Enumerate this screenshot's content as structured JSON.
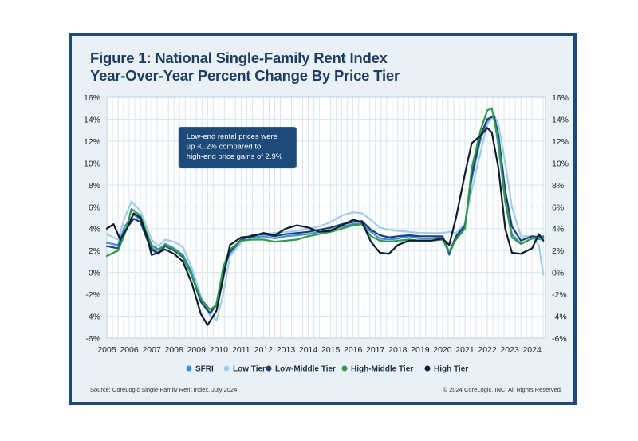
{
  "title_line1": "Figure 1: National Single-Family Rent Index",
  "title_line2": "Year-Over-Year Percent Change By Price Tier",
  "source": "Source: CoreLogic Single-Family Rent Index, July 2024",
  "copyright": "© 2024 CoreLogic, INC. All Rights Reserved.",
  "colors": {
    "frame": "#1f4a78",
    "background": "#e9f1f7",
    "title": "#1d3c5f",
    "annotation_box": "#1d4a78"
  },
  "chart_data": {
    "type": "line",
    "title": "National Single-Family Rent Index Year-Over-Year Percent Change By Price Tier",
    "xlim": [
      2005,
      2024.6
    ],
    "ylim": [
      -6,
      16
    ],
    "x_ticks": [
      2005,
      2006,
      2007,
      2008,
      2009,
      2010,
      2011,
      2012,
      2013,
      2014,
      2015,
      2016,
      2017,
      2018,
      2019,
      2020,
      2021,
      2022,
      2023,
      2024
    ],
    "y_ticks": [
      -6,
      -4,
      -2,
      0,
      2,
      4,
      6,
      8,
      10,
      12,
      14,
      16
    ],
    "y_tick_labels": [
      "-6%",
      "-4%",
      "-2%",
      "0%",
      "2%",
      "4%",
      "6%",
      "8%",
      "10%",
      "12%",
      "14%",
      "16%"
    ],
    "grid": true,
    "legend_position": "bottom",
    "annotation": [
      "Low-end rental prices were",
      "up -0.2% compared to",
      "high-end price gains of 2.9%"
    ],
    "series": [
      {
        "name": "SFRI",
        "color": "#3d8fd6",
        "points": [
          [
            2005.0,
            2.7
          ],
          [
            2005.5,
            2.5
          ],
          [
            2005.8,
            4.2
          ],
          [
            2006.2,
            5.3
          ],
          [
            2006.5,
            4.8
          ],
          [
            2006.8,
            3.2
          ],
          [
            2007.0,
            2.3
          ],
          [
            2007.3,
            1.8
          ],
          [
            2007.6,
            2.6
          ],
          [
            2008.0,
            2.2
          ],
          [
            2008.4,
            1.6
          ],
          [
            2008.8,
            0.0
          ],
          [
            2009.2,
            -2.5
          ],
          [
            2009.6,
            -3.9
          ],
          [
            2009.9,
            -2.8
          ],
          [
            2010.2,
            0.3
          ],
          [
            2010.5,
            1.7
          ],
          [
            2011.0,
            2.9
          ],
          [
            2011.5,
            3.2
          ],
          [
            2012.0,
            3.3
          ],
          [
            2012.5,
            3.1
          ],
          [
            2013.0,
            3.3
          ],
          [
            2013.5,
            3.4
          ],
          [
            2014.0,
            3.5
          ],
          [
            2014.5,
            3.7
          ],
          [
            2015.0,
            3.9
          ],
          [
            2015.5,
            4.2
          ],
          [
            2016.0,
            4.4
          ],
          [
            2016.4,
            4.5
          ],
          [
            2016.8,
            3.7
          ],
          [
            2017.2,
            3.1
          ],
          [
            2017.6,
            3.0
          ],
          [
            2018.0,
            3.1
          ],
          [
            2018.5,
            3.3
          ],
          [
            2019.0,
            3.1
          ],
          [
            2019.5,
            3.1
          ],
          [
            2020.0,
            3.2
          ],
          [
            2020.3,
            1.6
          ],
          [
            2020.6,
            3.2
          ],
          [
            2021.0,
            4.2
          ],
          [
            2021.3,
            8.5
          ],
          [
            2021.7,
            12.2
          ],
          [
            2022.0,
            13.8
          ],
          [
            2022.3,
            14.2
          ],
          [
            2022.5,
            11.5
          ],
          [
            2022.8,
            6.5
          ],
          [
            2023.1,
            3.5
          ],
          [
            2023.5,
            2.6
          ],
          [
            2024.0,
            3.1
          ],
          [
            2024.5,
            3.0
          ]
        ]
      },
      {
        "name": "Low Tier",
        "color": "#9fcdee",
        "points": [
          [
            2005.0,
            3.5
          ],
          [
            2005.5,
            3.0
          ],
          [
            2005.8,
            5.0
          ],
          [
            2006.1,
            6.5
          ],
          [
            2006.5,
            5.6
          ],
          [
            2006.8,
            4.0
          ],
          [
            2007.0,
            3.0
          ],
          [
            2007.3,
            2.4
          ],
          [
            2007.6,
            3.0
          ],
          [
            2008.0,
            2.8
          ],
          [
            2008.4,
            2.3
          ],
          [
            2008.8,
            0.4
          ],
          [
            2009.2,
            -2.2
          ],
          [
            2009.6,
            -3.9
          ],
          [
            2009.9,
            -4.4
          ],
          [
            2010.2,
            -2.0
          ],
          [
            2010.5,
            1.5
          ],
          [
            2011.0,
            2.7
          ],
          [
            2011.5,
            3.4
          ],
          [
            2012.0,
            3.5
          ],
          [
            2012.5,
            3.6
          ],
          [
            2013.0,
            3.7
          ],
          [
            2013.5,
            3.8
          ],
          [
            2014.0,
            4.0
          ],
          [
            2014.5,
            4.2
          ],
          [
            2015.0,
            4.6
          ],
          [
            2015.5,
            5.2
          ],
          [
            2016.0,
            5.5
          ],
          [
            2016.4,
            5.4
          ],
          [
            2016.8,
            4.8
          ],
          [
            2017.2,
            4.1
          ],
          [
            2017.6,
            3.9
          ],
          [
            2018.0,
            3.8
          ],
          [
            2018.5,
            3.7
          ],
          [
            2019.0,
            3.6
          ],
          [
            2019.5,
            3.6
          ],
          [
            2020.0,
            3.6
          ],
          [
            2020.3,
            3.7
          ],
          [
            2020.6,
            3.6
          ],
          [
            2021.0,
            4.5
          ],
          [
            2021.3,
            7.5
          ],
          [
            2021.7,
            11.0
          ],
          [
            2022.0,
            13.5
          ],
          [
            2022.3,
            14.4
          ],
          [
            2022.5,
            13.5
          ],
          [
            2022.8,
            10.0
          ],
          [
            2023.1,
            6.0
          ],
          [
            2023.5,
            3.3
          ],
          [
            2024.0,
            3.3
          ],
          [
            2024.3,
            2.5
          ],
          [
            2024.5,
            -0.2
          ]
        ]
      },
      {
        "name": "Low-Middle Tier",
        "color": "#1e3f73",
        "points": [
          [
            2005.0,
            2.4
          ],
          [
            2005.5,
            2.2
          ],
          [
            2005.8,
            3.8
          ],
          [
            2006.2,
            4.9
          ],
          [
            2006.5,
            4.6
          ],
          [
            2006.8,
            3.0
          ],
          [
            2007.0,
            2.1
          ],
          [
            2007.3,
            1.7
          ],
          [
            2007.6,
            2.4
          ],
          [
            2008.0,
            2.0
          ],
          [
            2008.4,
            1.4
          ],
          [
            2008.8,
            -0.3
          ],
          [
            2009.2,
            -2.7
          ],
          [
            2009.6,
            -3.7
          ],
          [
            2009.9,
            -3.0
          ],
          [
            2010.2,
            0.2
          ],
          [
            2010.5,
            1.9
          ],
          [
            2011.0,
            3.0
          ],
          [
            2011.5,
            3.4
          ],
          [
            2012.0,
            3.5
          ],
          [
            2012.5,
            3.3
          ],
          [
            2013.0,
            3.5
          ],
          [
            2013.5,
            3.6
          ],
          [
            2014.0,
            3.7
          ],
          [
            2014.5,
            3.9
          ],
          [
            2015.0,
            4.1
          ],
          [
            2015.5,
            4.4
          ],
          [
            2016.0,
            4.6
          ],
          [
            2016.4,
            4.7
          ],
          [
            2016.8,
            3.9
          ],
          [
            2017.2,
            3.4
          ],
          [
            2017.6,
            3.2
          ],
          [
            2018.0,
            3.3
          ],
          [
            2018.5,
            3.4
          ],
          [
            2019.0,
            3.3
          ],
          [
            2019.5,
            3.3
          ],
          [
            2020.0,
            3.3
          ],
          [
            2020.3,
            1.8
          ],
          [
            2020.6,
            3.3
          ],
          [
            2021.0,
            4.3
          ],
          [
            2021.3,
            8.8
          ],
          [
            2021.7,
            12.5
          ],
          [
            2022.0,
            14.0
          ],
          [
            2022.3,
            14.3
          ],
          [
            2022.5,
            12.5
          ],
          [
            2022.8,
            7.5
          ],
          [
            2023.1,
            4.2
          ],
          [
            2023.5,
            2.9
          ],
          [
            2024.0,
            3.3
          ],
          [
            2024.5,
            3.2
          ]
        ]
      },
      {
        "name": "High-Middle Tier",
        "color": "#2e9a4a",
        "points": [
          [
            2005.0,
            1.5
          ],
          [
            2005.5,
            2.0
          ],
          [
            2005.8,
            3.5
          ],
          [
            2006.1,
            5.8
          ],
          [
            2006.5,
            5.2
          ],
          [
            2006.8,
            3.5
          ],
          [
            2007.0,
            2.5
          ],
          [
            2007.3,
            2.1
          ],
          [
            2007.6,
            2.5
          ],
          [
            2008.0,
            2.1
          ],
          [
            2008.4,
            1.5
          ],
          [
            2008.8,
            -0.3
          ],
          [
            2009.2,
            -2.4
          ],
          [
            2009.6,
            -3.4
          ],
          [
            2009.9,
            -3.0
          ],
          [
            2010.2,
            0.5
          ],
          [
            2010.5,
            2.1
          ],
          [
            2011.0,
            2.9
          ],
          [
            2011.5,
            3.0
          ],
          [
            2012.0,
            3.0
          ],
          [
            2012.5,
            2.8
          ],
          [
            2013.0,
            2.9
          ],
          [
            2013.5,
            3.0
          ],
          [
            2014.0,
            3.3
          ],
          [
            2014.5,
            3.5
          ],
          [
            2015.0,
            3.7
          ],
          [
            2015.5,
            4.0
          ],
          [
            2016.0,
            4.3
          ],
          [
            2016.4,
            4.4
          ],
          [
            2016.8,
            3.3
          ],
          [
            2017.2,
            2.9
          ],
          [
            2017.6,
            2.8
          ],
          [
            2018.0,
            2.9
          ],
          [
            2018.5,
            3.0
          ],
          [
            2019.0,
            2.9
          ],
          [
            2019.5,
            2.9
          ],
          [
            2020.0,
            3.0
          ],
          [
            2020.3,
            1.9
          ],
          [
            2020.6,
            3.0
          ],
          [
            2021.0,
            4.0
          ],
          [
            2021.3,
            9.5
          ],
          [
            2021.7,
            13.0
          ],
          [
            2022.0,
            14.8
          ],
          [
            2022.2,
            15.0
          ],
          [
            2022.5,
            12.0
          ],
          [
            2022.8,
            6.5
          ],
          [
            2023.1,
            3.2
          ],
          [
            2023.5,
            2.6
          ],
          [
            2024.0,
            3.1
          ],
          [
            2024.5,
            3.3
          ]
        ]
      },
      {
        "name": "High Tier",
        "color": "#0f1c2e",
        "points": [
          [
            2005.0,
            4.0
          ],
          [
            2005.3,
            4.4
          ],
          [
            2005.6,
            3.0
          ],
          [
            2005.9,
            4.0
          ],
          [
            2006.2,
            5.4
          ],
          [
            2006.5,
            5.0
          ],
          [
            2006.8,
            3.2
          ],
          [
            2007.0,
            1.6
          ],
          [
            2007.3,
            1.8
          ],
          [
            2007.6,
            2.1
          ],
          [
            2008.0,
            1.7
          ],
          [
            2008.4,
            1.0
          ],
          [
            2008.8,
            -1.0
          ],
          [
            2009.2,
            -3.8
          ],
          [
            2009.5,
            -4.8
          ],
          [
            2009.9,
            -3.5
          ],
          [
            2010.2,
            -0.5
          ],
          [
            2010.5,
            2.5
          ],
          [
            2011.0,
            3.2
          ],
          [
            2011.5,
            3.3
          ],
          [
            2012.0,
            3.6
          ],
          [
            2012.5,
            3.4
          ],
          [
            2013.0,
            4.0
          ],
          [
            2013.5,
            4.3
          ],
          [
            2014.0,
            4.1
          ],
          [
            2014.5,
            3.7
          ],
          [
            2015.0,
            3.8
          ],
          [
            2015.5,
            4.3
          ],
          [
            2016.0,
            4.8
          ],
          [
            2016.4,
            4.6
          ],
          [
            2016.8,
            2.8
          ],
          [
            2017.2,
            1.8
          ],
          [
            2017.6,
            1.7
          ],
          [
            2018.0,
            2.5
          ],
          [
            2018.5,
            2.9
          ],
          [
            2019.0,
            2.9
          ],
          [
            2019.5,
            2.9
          ],
          [
            2020.0,
            3.1
          ],
          [
            2020.3,
            2.5
          ],
          [
            2020.6,
            5.0
          ],
          [
            2021.0,
            9.0
          ],
          [
            2021.3,
            11.8
          ],
          [
            2021.7,
            12.5
          ],
          [
            2022.0,
            13.2
          ],
          [
            2022.2,
            12.8
          ],
          [
            2022.5,
            9.5
          ],
          [
            2022.8,
            4.0
          ],
          [
            2023.1,
            1.8
          ],
          [
            2023.5,
            1.7
          ],
          [
            2024.0,
            2.2
          ],
          [
            2024.3,
            3.5
          ],
          [
            2024.5,
            2.9
          ]
        ]
      }
    ]
  }
}
